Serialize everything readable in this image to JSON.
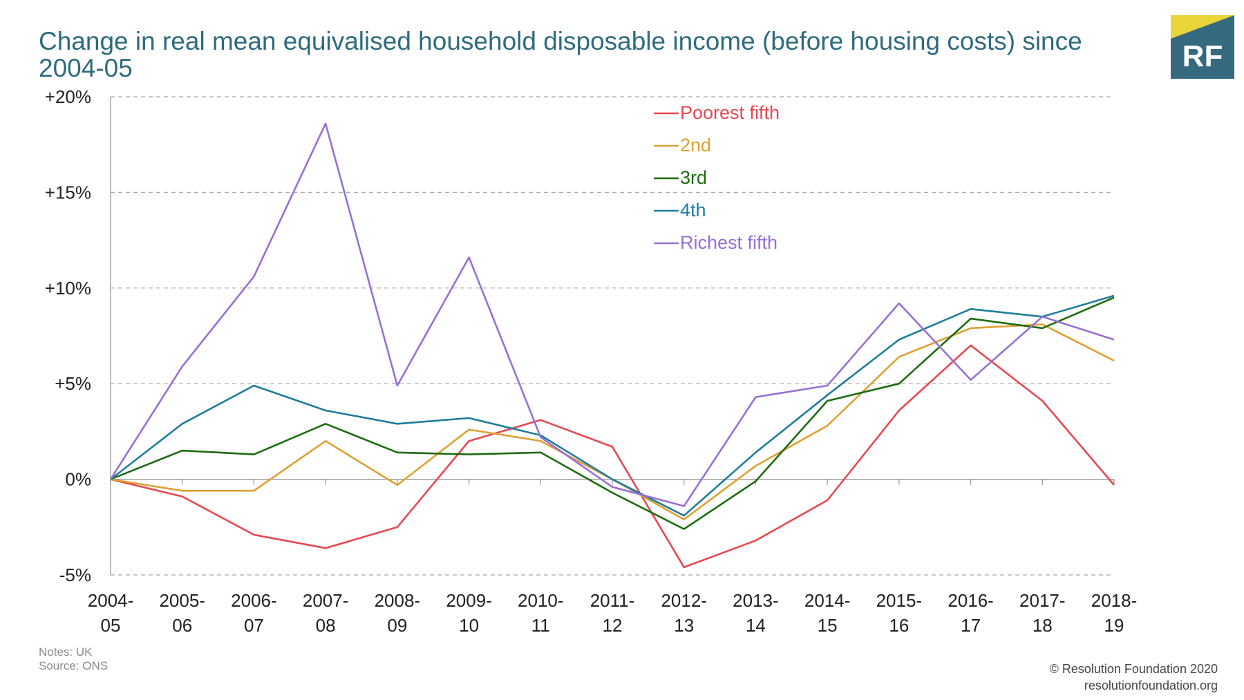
{
  "title": "Change in real mean equivalised household disposable income (before housing costs) since 2004-05",
  "logo": {
    "text": "RF",
    "bg_color": "#35697d",
    "accent_color": "#e9d43a"
  },
  "notes": {
    "line1": "Notes:  UK",
    "line2": "Source: ONS"
  },
  "credit": {
    "line1": "© Resolution Foundation 2020",
    "line2": "resolutionfoundation.org"
  },
  "chart_data": {
    "type": "line",
    "title": "Change in real mean equivalised household disposable income (before housing costs) since 2004-05",
    "xlabel": "",
    "ylabel": "",
    "categories": [
      [
        "2004-",
        "05"
      ],
      [
        "2005-",
        "06"
      ],
      [
        "2006-",
        "07"
      ],
      [
        "2007-",
        "08"
      ],
      [
        "2008-",
        "09"
      ],
      [
        "2009-",
        "10"
      ],
      [
        "2010-",
        "11"
      ],
      [
        "2011-",
        "12"
      ],
      [
        "2012-",
        "13"
      ],
      [
        "2013-",
        "14"
      ],
      [
        "2014-",
        "15"
      ],
      [
        "2015-",
        "16"
      ],
      [
        "2016-",
        "17"
      ],
      [
        "2017-",
        "18"
      ],
      [
        "2018-",
        "19"
      ]
    ],
    "ylim": [
      -5,
      20
    ],
    "yticks": [
      -5,
      0,
      5,
      10,
      15,
      20
    ],
    "ytick_labels": [
      "-5%",
      "0%",
      "+5%",
      "+10%",
      "+15%",
      "+20%"
    ],
    "grid": "horizontal dashed",
    "legend_position": "top-center",
    "series": [
      {
        "name": "Poorest fifth",
        "color": "#e8474f",
        "values": [
          0,
          -0.9,
          -2.9,
          -3.6,
          -2.5,
          2.0,
          3.1,
          1.7,
          -4.6,
          -3.2,
          -1.1,
          3.6,
          7.0,
          4.1,
          -0.3
        ]
      },
      {
        "name": "2nd",
        "color": "#dea032",
        "values": [
          0,
          -0.6,
          -0.6,
          2.0,
          -0.3,
          2.6,
          2.0,
          0.0,
          -2.1,
          0.7,
          2.8,
          6.4,
          7.9,
          8.1,
          6.2
        ]
      },
      {
        "name": "3rd",
        "color": "#1d6b10",
        "values": [
          0,
          1.5,
          1.3,
          2.9,
          1.4,
          1.3,
          1.4,
          -0.7,
          -2.6,
          -0.1,
          4.1,
          5.0,
          8.4,
          7.9,
          9.5
        ]
      },
      {
        "name": "4th",
        "color": "#1f7d9b",
        "values": [
          0,
          2.9,
          4.9,
          3.6,
          2.9,
          3.2,
          2.3,
          0.0,
          -1.9,
          1.4,
          4.4,
          7.3,
          8.9,
          8.5,
          9.6
        ]
      },
      {
        "name": "Richest fifth",
        "color": "#9670d4",
        "values": [
          0,
          5.9,
          10.6,
          18.6,
          4.9,
          11.6,
          2.2,
          -0.4,
          -1.4,
          4.3,
          4.9,
          9.2,
          5.2,
          8.5,
          7.3
        ]
      }
    ]
  }
}
